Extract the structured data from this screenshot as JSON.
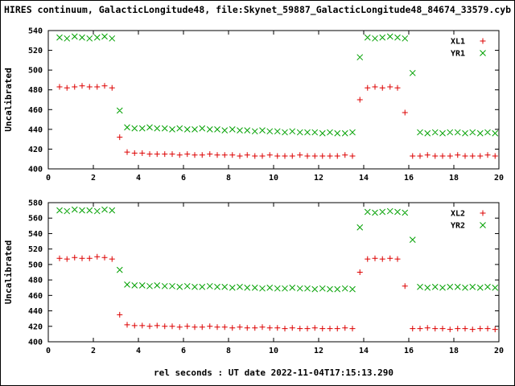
{
  "title": "HIRES continuum, GalacticLongitude48, file:Skynet_59887_GalacticLongitude48_84674_33579.cyb",
  "xlabel": "rel seconds : UT date 2022-11-04T17:15:13.290",
  "chart_data": [
    {
      "type": "scatter",
      "panel": "top",
      "ylabel": "Uncalibrated",
      "ylim": [
        400,
        540
      ],
      "yticks": [
        400,
        420,
        440,
        460,
        480,
        500,
        520,
        540
      ],
      "xlim": [
        0,
        20
      ],
      "xticks": [
        0,
        2,
        4,
        6,
        8,
        10,
        12,
        14,
        16,
        18,
        20
      ],
      "grid": false,
      "legend_position": "top-right",
      "x": [
        0.5,
        0.83,
        1.17,
        1.5,
        1.83,
        2.17,
        2.5,
        2.83,
        3.17,
        3.5,
        3.83,
        4.17,
        4.5,
        4.83,
        5.17,
        5.5,
        5.83,
        6.17,
        6.5,
        6.83,
        7.17,
        7.5,
        7.83,
        8.17,
        8.5,
        8.83,
        9.17,
        9.5,
        9.83,
        10.17,
        10.5,
        10.83,
        11.17,
        11.5,
        11.83,
        12.17,
        12.5,
        12.83,
        13.17,
        13.5,
        13.83,
        14.17,
        14.5,
        14.83,
        15.17,
        15.5,
        15.83,
        16.17,
        16.5,
        16.83,
        17.17,
        17.5,
        17.83,
        18.17,
        18.5,
        18.83,
        19.17,
        19.5,
        19.83
      ],
      "series": [
        {
          "name": "XL1",
          "marker": "plus",
          "color": "#dd0000",
          "y": [
            483,
            482,
            483,
            484,
            483,
            483,
            484,
            482,
            432,
            417,
            416,
            416,
            415,
            415,
            415,
            415,
            414,
            415,
            414,
            414,
            415,
            414,
            414,
            414,
            413,
            414,
            413,
            413,
            414,
            413,
            413,
            413,
            414,
            413,
            413,
            413,
            413,
            413,
            414,
            413,
            470,
            482,
            483,
            482,
            483,
            482,
            457,
            413,
            413,
            414,
            413,
            413,
            413,
            414,
            413,
            413,
            413,
            414,
            413
          ]
        },
        {
          "name": "YR1",
          "marker": "cross",
          "color": "#00a000",
          "y": [
            533,
            532,
            534,
            533,
            532,
            533,
            534,
            532,
            459,
            442,
            441,
            441,
            442,
            441,
            441,
            440,
            441,
            440,
            440,
            441,
            440,
            440,
            439,
            440,
            439,
            439,
            438,
            439,
            438,
            438,
            437,
            438,
            437,
            437,
            437,
            436,
            437,
            436,
            436,
            437,
            513,
            533,
            532,
            533,
            534,
            533,
            532,
            497,
            437,
            436,
            437,
            436,
            437,
            437,
            436,
            437,
            436,
            437,
            436
          ]
        }
      ]
    },
    {
      "type": "scatter",
      "panel": "bottom",
      "ylabel": "Uncalibrated",
      "ylim": [
        400,
        580
      ],
      "yticks": [
        400,
        420,
        440,
        460,
        480,
        500,
        520,
        540,
        560,
        580
      ],
      "xlim": [
        0,
        20
      ],
      "xticks": [
        0,
        2,
        4,
        6,
        8,
        10,
        12,
        14,
        16,
        18,
        20
      ],
      "grid": false,
      "legend_position": "top-right",
      "x": [
        0.5,
        0.83,
        1.17,
        1.5,
        1.83,
        2.17,
        2.5,
        2.83,
        3.17,
        3.5,
        3.83,
        4.17,
        4.5,
        4.83,
        5.17,
        5.5,
        5.83,
        6.17,
        6.5,
        6.83,
        7.17,
        7.5,
        7.83,
        8.17,
        8.5,
        8.83,
        9.17,
        9.5,
        9.83,
        10.17,
        10.5,
        10.83,
        11.17,
        11.5,
        11.83,
        12.17,
        12.5,
        12.83,
        13.17,
        13.5,
        13.83,
        14.17,
        14.5,
        14.83,
        15.17,
        15.5,
        15.83,
        16.17,
        16.5,
        16.83,
        17.17,
        17.5,
        17.83,
        18.17,
        18.5,
        18.83,
        19.17,
        19.5,
        19.83
      ],
      "series": [
        {
          "name": "XL2",
          "marker": "plus",
          "color": "#dd0000",
          "y": [
            508,
            507,
            509,
            508,
            508,
            510,
            509,
            507,
            435,
            422,
            421,
            421,
            420,
            421,
            420,
            420,
            419,
            420,
            419,
            419,
            420,
            419,
            419,
            418,
            419,
            418,
            418,
            419,
            418,
            418,
            417,
            418,
            417,
            417,
            418,
            417,
            417,
            417,
            418,
            417,
            490,
            507,
            508,
            507,
            508,
            507,
            472,
            417,
            417,
            418,
            417,
            417,
            416,
            417,
            417,
            416,
            417,
            417,
            416
          ]
        },
        {
          "name": "YR2",
          "marker": "cross",
          "color": "#00a000",
          "y": [
            570,
            569,
            571,
            570,
            570,
            569,
            571,
            570,
            493,
            474,
            473,
            473,
            472,
            473,
            472,
            472,
            471,
            472,
            471,
            471,
            472,
            471,
            471,
            470,
            471,
            470,
            470,
            469,
            470,
            469,
            469,
            470,
            469,
            469,
            468,
            469,
            468,
            468,
            469,
            468,
            548,
            568,
            567,
            568,
            569,
            568,
            567,
            532,
            471,
            470,
            471,
            470,
            471,
            471,
            470,
            471,
            470,
            471,
            470
          ]
        }
      ]
    }
  ]
}
